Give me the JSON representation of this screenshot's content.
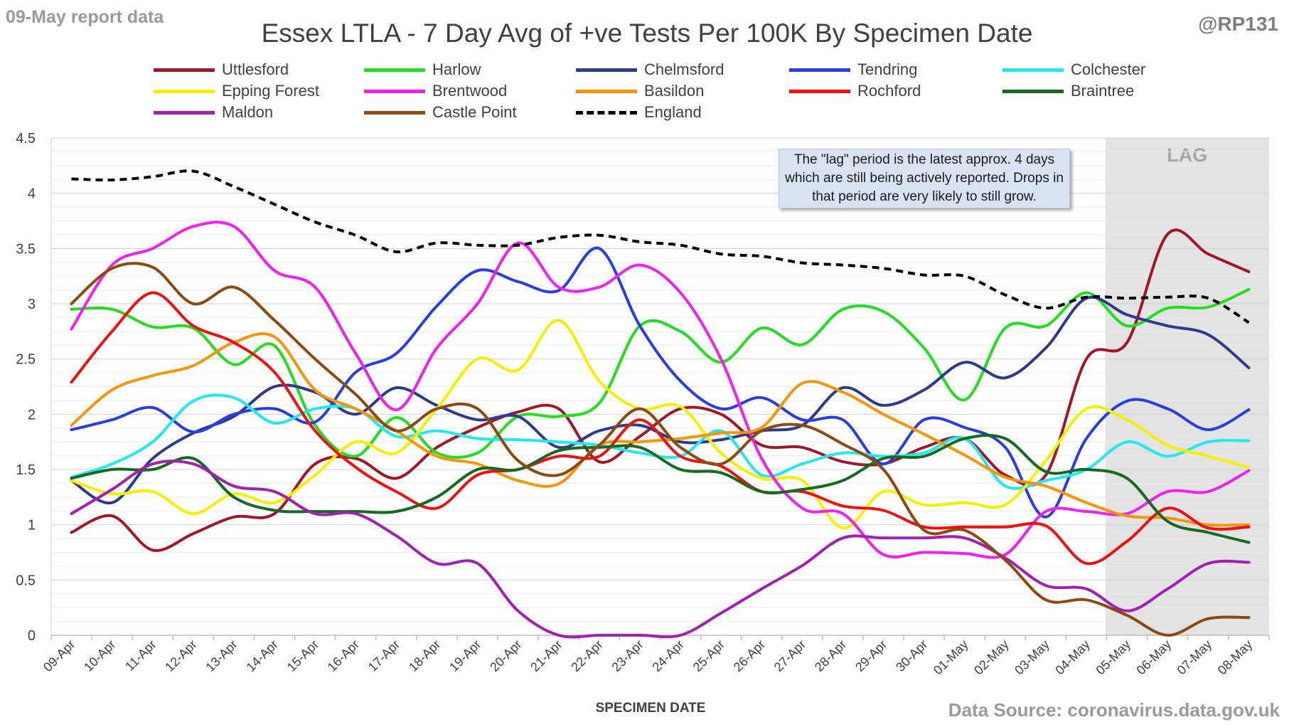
{
  "header": {
    "report_date": "09-May report data",
    "handle": "@RP131",
    "source": "Data Source: coronavirus.data.gov.uk"
  },
  "note": "The \"lag\" period is the latest approx. 4 days which are still being actively reported.  Drops in that period are very likely to still grow.",
  "chart_data": {
    "type": "line",
    "title": "Essex LTLA - 7 Day Avg of +ve Tests Per 100K By Specimen Date",
    "xlabel": "SPECIMEN DATE",
    "ylabel": "",
    "ylim": [
      0,
      4.5
    ],
    "yticks": [
      "0",
      "0.5",
      "1",
      "1.5",
      "2",
      "2.5",
      "3",
      "3.5",
      "4",
      "4.5"
    ],
    "grid": true,
    "legend_position": "top",
    "lag_region": {
      "label": "LAG",
      "from": "05-May",
      "to": "08-May"
    },
    "categories": [
      "09-Apr",
      "10-Apr",
      "11-Apr",
      "12-Apr",
      "13-Apr",
      "14-Apr",
      "15-Apr",
      "16-Apr",
      "17-Apr",
      "18-Apr",
      "19-Apr",
      "20-Apr",
      "21-Apr",
      "22-Apr",
      "23-Apr",
      "24-Apr",
      "25-Apr",
      "26-Apr",
      "27-Apr",
      "28-Apr",
      "29-Apr",
      "30-Apr",
      "01-May",
      "02-May",
      "03-May",
      "04-May",
      "05-May",
      "06-May",
      "07-May",
      "08-May"
    ],
    "series": [
      {
        "name": "Uttlesford",
        "color": "#a01828",
        "dash": false,
        "values": [
          0.93,
          1.08,
          0.77,
          0.92,
          1.07,
          1.1,
          1.55,
          1.6,
          1.42,
          1.7,
          1.88,
          2.02,
          2.05,
          1.57,
          1.8,
          2.05,
          2.0,
          1.72,
          1.7,
          1.57,
          1.55,
          1.7,
          1.78,
          1.45,
          1.45,
          2.5,
          2.65,
          3.63,
          3.45,
          3.29
        ]
      },
      {
        "name": "Harlow",
        "color": "#22dd22",
        "dash": false,
        "values": [
          2.95,
          2.95,
          2.79,
          2.78,
          2.45,
          2.62,
          1.9,
          1.62,
          1.97,
          1.65,
          1.65,
          1.98,
          1.98,
          2.1,
          2.8,
          2.75,
          2.47,
          2.78,
          2.63,
          2.95,
          2.93,
          2.6,
          2.13,
          2.78,
          2.8,
          3.1,
          2.8,
          2.96,
          2.97,
          3.13
        ]
      },
      {
        "name": "Chelmsford",
        "color": "#2e3a8c",
        "dash": false,
        "values": [
          1.4,
          1.2,
          1.6,
          1.83,
          1.98,
          2.25,
          2.2,
          2.0,
          2.24,
          2.08,
          1.95,
          1.98,
          1.7,
          1.85,
          1.9,
          1.75,
          1.77,
          1.85,
          1.9,
          2.24,
          2.08,
          2.22,
          2.47,
          2.33,
          2.6,
          3.05,
          2.9,
          2.8,
          2.72,
          2.42
        ]
      },
      {
        "name": "Tendring",
        "color": "#2a3ee0",
        "dash": false,
        "values": [
          1.86,
          1.95,
          2.06,
          1.84,
          2.0,
          2.05,
          1.93,
          2.38,
          2.55,
          2.98,
          3.3,
          3.2,
          3.12,
          3.5,
          2.8,
          2.3,
          2.05,
          2.15,
          1.95,
          1.95,
          1.55,
          1.95,
          1.88,
          1.7,
          1.07,
          1.78,
          2.12,
          2.05,
          1.86,
          2.04
        ]
      },
      {
        "name": "Colchester",
        "color": "#22e8f0",
        "dash": false,
        "values": [
          1.43,
          1.55,
          1.75,
          2.12,
          2.15,
          1.92,
          2.05,
          2.05,
          1.8,
          1.85,
          1.78,
          1.77,
          1.75,
          1.72,
          1.65,
          1.62,
          1.85,
          1.45,
          1.55,
          1.65,
          1.62,
          1.65,
          1.78,
          1.35,
          1.4,
          1.5,
          1.75,
          1.62,
          1.75,
          1.76
        ]
      },
      {
        "name": "Epping Forest",
        "color": "#f4f000",
        "dash": false,
        "values": [
          1.4,
          1.28,
          1.3,
          1.1,
          1.28,
          1.2,
          1.45,
          1.75,
          1.65,
          2.05,
          2.5,
          2.4,
          2.85,
          2.3,
          2.05,
          2.07,
          1.65,
          1.42,
          1.4,
          0.97,
          1.3,
          1.18,
          1.2,
          1.18,
          1.58,
          2.05,
          1.95,
          1.72,
          1.62,
          1.52
        ]
      },
      {
        "name": "Brentwood",
        "color": "#f020f0",
        "dash": false,
        "values": [
          2.77,
          3.35,
          3.5,
          3.7,
          3.7,
          3.3,
          3.15,
          2.55,
          2.04,
          2.6,
          3.0,
          3.55,
          3.15,
          3.15,
          3.35,
          3.1,
          2.5,
          1.6,
          1.15,
          1.1,
          0.73,
          0.75,
          0.74,
          0.73,
          1.12,
          1.12,
          1.1,
          1.3,
          1.3,
          1.49
        ]
      },
      {
        "name": "Basildon",
        "color": "#f5950a",
        "dash": false,
        "values": [
          1.9,
          2.22,
          2.35,
          2.44,
          2.65,
          2.7,
          2.22,
          2.05,
          1.85,
          1.62,
          1.55,
          1.4,
          1.37,
          1.72,
          1.75,
          1.78,
          1.83,
          1.88,
          2.28,
          2.2,
          2.0,
          1.82,
          1.63,
          1.43,
          1.35,
          1.2,
          1.08,
          1.06,
          1.0,
          1.0
        ]
      },
      {
        "name": "Rochford",
        "color": "#ee1111",
        "dash": false,
        "values": [
          2.29,
          2.75,
          3.1,
          2.8,
          2.65,
          2.38,
          1.85,
          1.52,
          1.3,
          1.15,
          1.45,
          1.5,
          1.62,
          1.62,
          1.95,
          1.62,
          1.53,
          1.3,
          1.3,
          1.17,
          1.13,
          0.98,
          0.98,
          0.98,
          0.99,
          0.65,
          0.85,
          1.15,
          0.97,
          0.98
        ]
      },
      {
        "name": "Braintree",
        "color": "#156a20",
        "dash": false,
        "values": [
          1.42,
          1.5,
          1.5,
          1.6,
          1.25,
          1.13,
          1.12,
          1.12,
          1.12,
          1.25,
          1.5,
          1.5,
          1.67,
          1.7,
          1.7,
          1.5,
          1.47,
          1.3,
          1.32,
          1.4,
          1.6,
          1.62,
          1.78,
          1.78,
          1.48,
          1.5,
          1.42,
          1.03,
          0.93,
          0.84
        ]
      },
      {
        "name": "Maldon",
        "color": "#a020b0",
        "dash": false,
        "values": [
          1.1,
          1.32,
          1.55,
          1.55,
          1.35,
          1.3,
          1.1,
          1.1,
          0.9,
          0.65,
          0.65,
          0.22,
          0.0,
          0.0,
          0.0,
          0.0,
          0.2,
          0.42,
          0.63,
          0.88,
          0.88,
          0.88,
          0.88,
          0.7,
          0.45,
          0.42,
          0.22,
          0.42,
          0.65,
          0.66
        ]
      },
      {
        "name": "Castle Point",
        "color": "#8a4a10",
        "dash": false,
        "values": [
          3.0,
          3.32,
          3.33,
          3.0,
          3.15,
          2.85,
          2.5,
          2.18,
          1.85,
          2.05,
          2.05,
          1.58,
          1.45,
          1.72,
          2.05,
          1.7,
          1.55,
          1.85,
          1.9,
          1.73,
          1.5,
          0.95,
          0.95,
          0.68,
          0.32,
          0.32,
          0.18,
          0.0,
          0.15,
          0.16
        ]
      },
      {
        "name": "England",
        "color": "#000000",
        "dash": true,
        "values": [
          4.13,
          4.12,
          4.15,
          4.2,
          4.06,
          3.9,
          3.74,
          3.62,
          3.47,
          3.55,
          3.53,
          3.53,
          3.6,
          3.62,
          3.56,
          3.53,
          3.45,
          3.43,
          3.37,
          3.35,
          3.32,
          3.26,
          3.25,
          3.08,
          2.96,
          3.06,
          3.05,
          3.06,
          3.05,
          2.83
        ]
      }
    ]
  }
}
